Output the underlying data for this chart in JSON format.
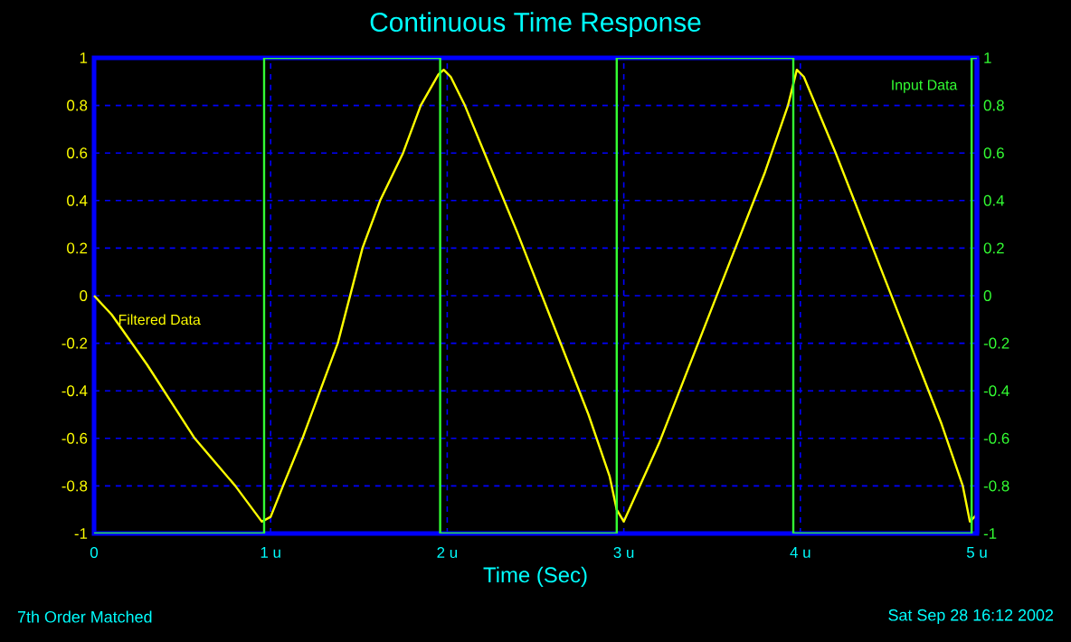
{
  "chart_data": {
    "type": "line",
    "title": "Continuous Time Response",
    "xlabel": "Time (Sec)",
    "annotations": [
      "7th Order Matched",
      "Sat Sep 28 16:12 2002"
    ],
    "xlim": [
      0,
      5
    ],
    "xticks": [
      0,
      {
        "value": 1,
        "label": "1 u"
      },
      {
        "value": 2,
        "label": "2 u"
      },
      {
        "value": 3,
        "label": "3 u"
      },
      {
        "value": 4,
        "label": "4 u"
      },
      {
        "value": 5,
        "label": "5 u"
      }
    ],
    "ylim": [
      -1,
      1
    ],
    "yticks": [
      -1,
      -0.8,
      -0.6,
      -0.4,
      -0.2,
      0,
      0.2,
      0.4,
      0.6,
      0.8,
      1
    ],
    "y2lim": [
      -1,
      1
    ],
    "y2ticks": [
      -1,
      -0.8,
      -0.6,
      -0.4,
      -0.2,
      0,
      0.2,
      0.4,
      0.6,
      0.8,
      1
    ],
    "grid": true,
    "marker": "none",
    "line_style": "solid",
    "series": [
      {
        "name": "Filtered Data",
        "color": "#ffff00",
        "x": [
          0,
          0.05,
          0.1,
          0.3,
          0.57,
          0.8,
          0.95,
          1.0,
          1.07,
          1.18,
          1.28,
          1.38,
          1.52,
          1.62,
          1.75,
          1.85,
          1.95,
          1.98,
          2.02,
          2.1,
          2.2,
          2.4,
          2.6,
          2.8,
          2.92,
          2.96,
          3.0,
          3.2,
          3.4,
          3.6,
          3.8,
          3.93,
          3.98,
          4.02,
          4.2,
          4.4,
          4.6,
          4.8,
          4.92,
          4.96,
          5.0
        ],
        "values": [
          0,
          -0.04,
          -0.08,
          -0.29,
          -0.6,
          -0.8,
          -0.95,
          -0.93,
          -0.8,
          -0.6,
          -0.4,
          -0.2,
          0.2,
          0.4,
          0.6,
          0.8,
          0.93,
          0.95,
          0.92,
          0.8,
          0.62,
          0.26,
          -0.12,
          -0.5,
          -0.76,
          -0.9,
          -0.95,
          -0.62,
          -0.24,
          0.14,
          0.52,
          0.8,
          0.95,
          0.92,
          0.6,
          0.22,
          -0.16,
          -0.54,
          -0.8,
          -0.95,
          -0.92
        ]
      },
      {
        "name": "Input Data",
        "color": "#33ff33",
        "type": "step",
        "axis": "y2",
        "x": [
          0,
          0.963,
          1.96,
          2.96,
          3.96,
          4.97,
          5
        ],
        "values": [
          -1,
          1,
          -1,
          1,
          -1,
          1,
          1
        ]
      }
    ]
  }
}
